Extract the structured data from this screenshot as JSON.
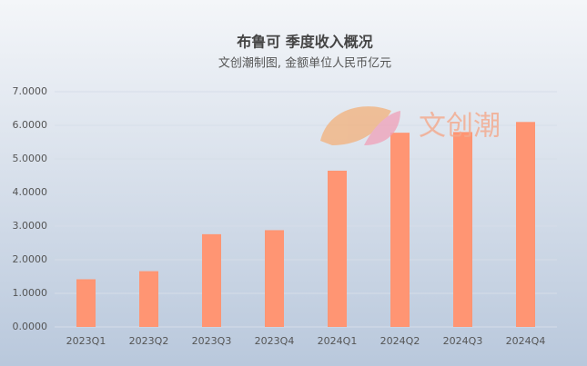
{
  "chart_data": {
    "type": "bar",
    "title": "布鲁可 季度收入概况",
    "subtitle": "文创潮制图, 金额单位人民币亿元",
    "watermark": "文创潮",
    "categories": [
      "2023Q1",
      "2023Q2",
      "2023Q3",
      "2023Q4",
      "2024Q1",
      "2024Q2",
      "2024Q3",
      "2024Q4"
    ],
    "values": [
      1.42,
      1.66,
      2.76,
      2.88,
      4.65,
      5.78,
      5.8,
      6.1
    ],
    "color": "#ff9573",
    "ylim": [
      0,
      7
    ],
    "yticks": [
      {
        "value": 0,
        "label": "0.0000"
      },
      {
        "value": 1,
        "label": "1.0000"
      },
      {
        "value": 2,
        "label": "2.0000"
      },
      {
        "value": 3,
        "label": "3.0000"
      },
      {
        "value": 4,
        "label": "4.0000"
      },
      {
        "value": 5,
        "label": "5.0000"
      },
      {
        "value": 6,
        "label": "6.0000"
      },
      {
        "value": 7,
        "label": "7.0000"
      }
    ],
    "grid": true
  }
}
